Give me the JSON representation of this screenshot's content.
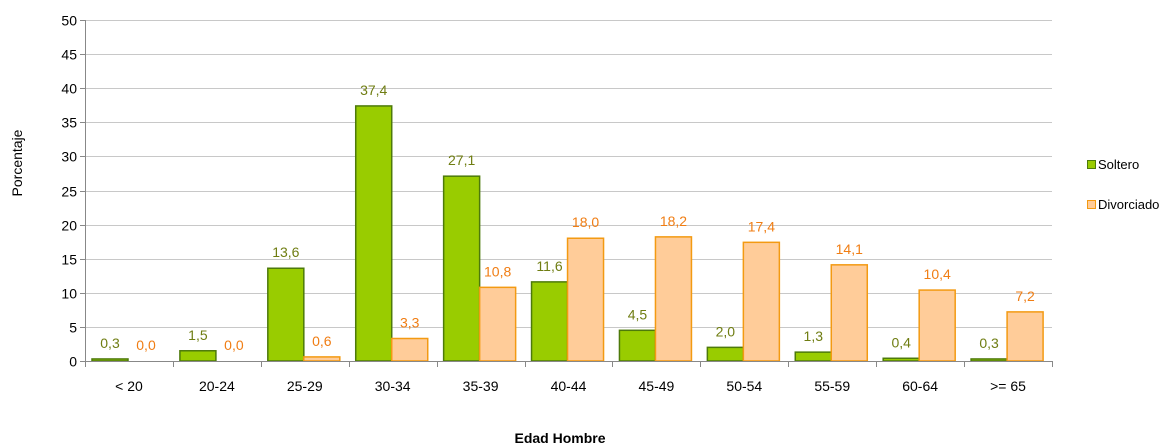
{
  "chart_data": {
    "type": "bar",
    "categories": [
      "< 20",
      "20-24",
      "25-29",
      "30-34",
      "35-39",
      "40-44",
      "45-49",
      "50-54",
      "55-59",
      "60-64",
      ">= 65"
    ],
    "series": [
      {
        "name": "Soltero",
        "values": [
          0.3,
          1.5,
          13.6,
          37.4,
          27.1,
          11.6,
          4.5,
          2.0,
          1.3,
          0.4,
          0.3
        ],
        "labels": [
          "0,3",
          "1,5",
          "13,6",
          "37,4",
          "27,1",
          "11,6",
          "4,5",
          "2,0",
          "1,3",
          "0,4",
          "0,3"
        ],
        "fill": "#99cc00",
        "stroke": "#4d7a0a",
        "label_color": "#6f7d12"
      },
      {
        "name": "Divorciado",
        "values": [
          0.0,
          0.0,
          0.6,
          3.3,
          10.8,
          18.0,
          18.2,
          17.4,
          14.1,
          10.4,
          7.2
        ],
        "labels": [
          "0,0",
          "0,0",
          "0,6",
          "3,3",
          "10,8",
          "18,0",
          "18,2",
          "17,4",
          "14,1",
          "10,4",
          "7,2"
        ],
        "fill": "#ffcc99",
        "stroke": "#f39a12",
        "label_color": "#f07d13"
      }
    ],
    "xlabel": "Edad Hombre",
    "ylabel": "Porcentaje",
    "ylim": [
      0,
      50
    ],
    "yticks": [
      0,
      5,
      10,
      15,
      20,
      25,
      30,
      35,
      40,
      45,
      50
    ],
    "grid": true,
    "legend": "right"
  }
}
